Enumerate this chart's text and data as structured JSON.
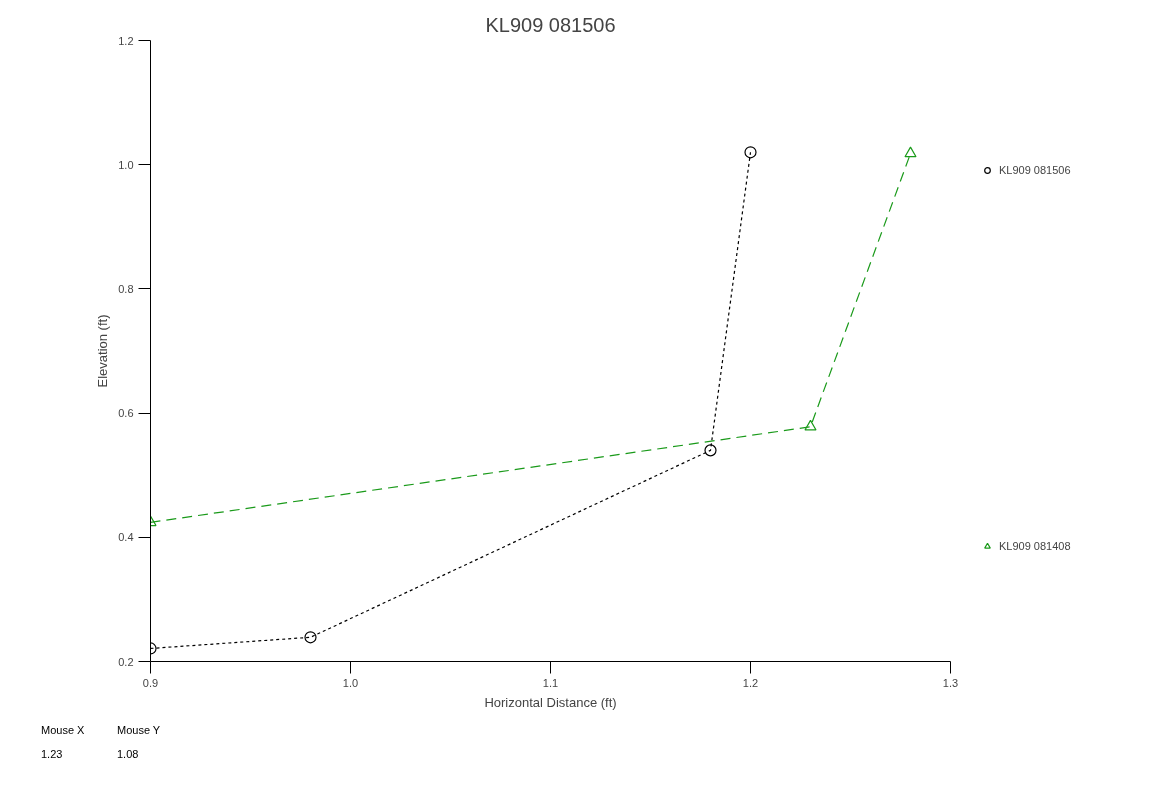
{
  "chart_data": {
    "type": "line",
    "title": "KL909 081506",
    "xlabel": "Horizontal Distance (ft)",
    "ylabel": "Elevation (ft)",
    "xlim": [
      0.9,
      1.3
    ],
    "xticks": [
      {
        "value": 0.9,
        "label": "0.9"
      },
      {
        "value": 1.0,
        "label": "1.0"
      },
      {
        "value": 1.1,
        "label": "1.1"
      },
      {
        "value": 1.2,
        "label": "1.2"
      },
      {
        "value": 1.3,
        "label": "1.3"
      }
    ],
    "ylim": [
      0.2,
      1.2
    ],
    "yticks": [
      {
        "value": 0.2,
        "label": "0.2"
      },
      {
        "value": 0.4,
        "label": "0.4"
      },
      {
        "value": 0.6,
        "label": "0.6"
      },
      {
        "value": 0.8,
        "label": "0.8"
      },
      {
        "value": 1.0,
        "label": "1.0"
      },
      {
        "value": 1.2,
        "label": "1.2"
      }
    ],
    "grid": false,
    "legend": "right",
    "series": [
      {
        "name": "KL909 081506",
        "color": "#000000",
        "marker": "circle",
        "line_style": "dotted",
        "x": [
          0.9,
          0.98,
          1.18,
          1.2
        ],
        "values": [
          0.221,
          0.239,
          0.54,
          1.02
        ]
      },
      {
        "name": "KL909 081408",
        "color": "#1a9a1a",
        "marker": "triangle",
        "line_style": "dashed",
        "x": [
          0.9,
          1.23,
          1.28
        ],
        "values": [
          0.424,
          0.578,
          1.018
        ]
      }
    ],
    "annotations": [
      "Mouse X",
      "1.23",
      "Mouse Y",
      "1.08"
    ]
  }
}
